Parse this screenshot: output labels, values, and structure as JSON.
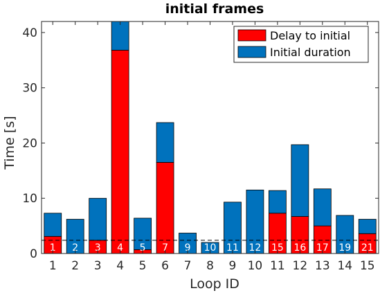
{
  "chart_data": {
    "type": "bar",
    "stacked": true,
    "title": "initial frames",
    "xlabel": "Loop ID",
    "ylabel": "Time [s]",
    "ylim": [
      0,
      42
    ],
    "yticks": [
      0,
      10,
      20,
      30,
      40
    ],
    "categories": [
      "1",
      "2",
      "3",
      "4",
      "5",
      "6",
      "7",
      "8",
      "9",
      "10",
      "11",
      "12",
      "13",
      "14",
      "15"
    ],
    "bar_labels": [
      "1",
      "2",
      "3",
      "4",
      "5",
      "7",
      "9",
      "10",
      "11",
      "12",
      "15",
      "16",
      "17",
      "19",
      "21"
    ],
    "series": [
      {
        "name": "Delay to initial",
        "color": "#ff0000",
        "values": [
          3.1,
          0,
          2.4,
          36.8,
          0.7,
          16.5,
          0,
          0,
          0,
          0,
          7.3,
          6.7,
          5.0,
          0,
          3.6
        ]
      },
      {
        "name": "Initial duration",
        "color": "#0072bd",
        "values": [
          4.2,
          6.2,
          7.6,
          5.2,
          5.7,
          7.2,
          3.7,
          2.0,
          9.3,
          11.5,
          4.1,
          13.0,
          6.7,
          6.9,
          2.6
        ]
      }
    ],
    "threshold": 2.4,
    "legend_position": "top-right",
    "grid": false
  }
}
